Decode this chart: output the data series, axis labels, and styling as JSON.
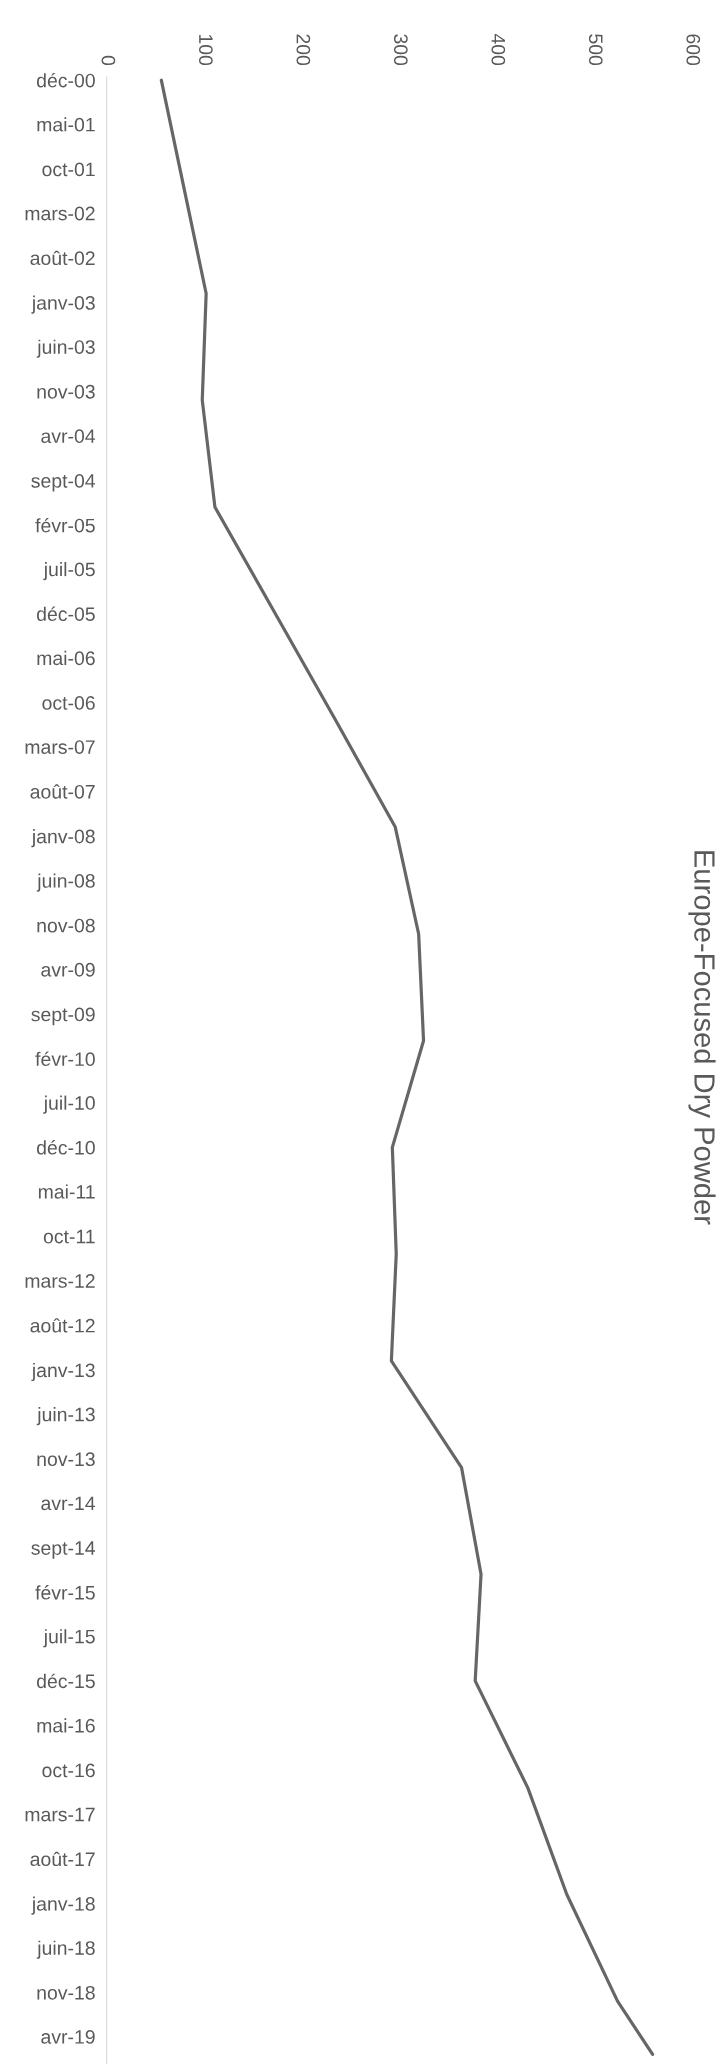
{
  "chart_data": {
    "type": "line",
    "orientation": "horizontal",
    "title": "Europe-Focused Dry Powder",
    "x": [
      "2000-12",
      "2001-12",
      "2002-12",
      "2003-12",
      "2004-12",
      "2005-12",
      "2006-12",
      "2007-12",
      "2008-12",
      "2009-12",
      "2010-12",
      "2011-12",
      "2012-12",
      "2013-12",
      "2014-12",
      "2015-12",
      "2016-12",
      "2017-12",
      "2018-12",
      "2019-06"
    ],
    "series": [
      {
        "color": "#666666",
        "values": [
          56,
          79,
          102,
          98,
          111,
          173,
          235,
          296,
          320,
          325,
          293,
          297,
          292,
          364,
          384,
          378,
          432,
          472,
          524,
          560
        ]
      }
    ],
    "xlim": [
      0,
      600
    ],
    "xticks": [
      0,
      100,
      200,
      300,
      400,
      500,
      600
    ],
    "ylim": [
      "2019-07-04",
      "2000-11-20"
    ],
    "yticks": [
      {
        "value": "2000-12",
        "label": "déc-00"
      },
      {
        "value": "2001-05",
        "label": "mai-01"
      },
      {
        "value": "2001-10",
        "label": "oct-01"
      },
      {
        "value": "2002-03",
        "label": "mars-02"
      },
      {
        "value": "2002-08",
        "label": "août-02"
      },
      {
        "value": "2003-01",
        "label": "janv-03"
      },
      {
        "value": "2003-06",
        "label": "juin-03"
      },
      {
        "value": "2003-11",
        "label": "nov-03"
      },
      {
        "value": "2004-04",
        "label": "avr-04"
      },
      {
        "value": "2004-09",
        "label": "sept-04"
      },
      {
        "value": "2005-02",
        "label": "févr-05"
      },
      {
        "value": "2005-07",
        "label": "juil-05"
      },
      {
        "value": "2005-12",
        "label": "déc-05"
      },
      {
        "value": "2006-05",
        "label": "mai-06"
      },
      {
        "value": "2006-10",
        "label": "oct-06"
      },
      {
        "value": "2007-03",
        "label": "mars-07"
      },
      {
        "value": "2007-08",
        "label": "août-07"
      },
      {
        "value": "2008-01",
        "label": "janv-08"
      },
      {
        "value": "2008-06",
        "label": "juin-08"
      },
      {
        "value": "2008-11",
        "label": "nov-08"
      },
      {
        "value": "2009-04",
        "label": "avr-09"
      },
      {
        "value": "2009-09",
        "label": "sept-09"
      },
      {
        "value": "2010-02",
        "label": "févr-10"
      },
      {
        "value": "2010-07",
        "label": "juil-10"
      },
      {
        "value": "2010-12",
        "label": "déc-10"
      },
      {
        "value": "2011-05",
        "label": "mai-11"
      },
      {
        "value": "2011-10",
        "label": "oct-11"
      },
      {
        "value": "2012-03",
        "label": "mars-12"
      },
      {
        "value": "2012-08",
        "label": "août-12"
      },
      {
        "value": "2013-01",
        "label": "janv-13"
      },
      {
        "value": "2013-06",
        "label": "juin-13"
      },
      {
        "value": "2013-11",
        "label": "nov-13"
      },
      {
        "value": "2014-04",
        "label": "avr-14"
      },
      {
        "value": "2014-09",
        "label": "sept-14"
      },
      {
        "value": "2015-02",
        "label": "févr-15"
      },
      {
        "value": "2015-07",
        "label": "juil-15"
      },
      {
        "value": "2015-12",
        "label": "déc-15"
      },
      {
        "value": "2016-05",
        "label": "mai-16"
      },
      {
        "value": "2016-10",
        "label": "oct-16"
      },
      {
        "value": "2017-03",
        "label": "mars-17"
      },
      {
        "value": "2017-08",
        "label": "août-17"
      },
      {
        "value": "2018-01",
        "label": "janv-18"
      },
      {
        "value": "2018-06",
        "label": "juin-18"
      },
      {
        "value": "2018-11",
        "label": "nov-18"
      },
      {
        "value": "2019-04",
        "label": "avr-19"
      }
    ],
    "line_style": "solid"
  }
}
